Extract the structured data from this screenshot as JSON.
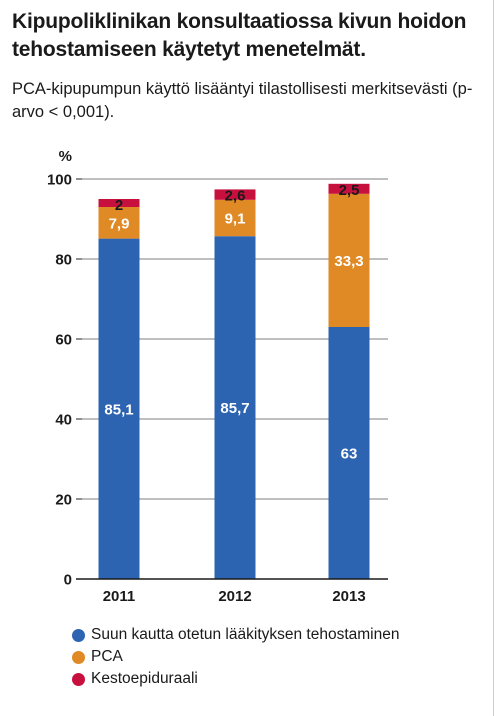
{
  "header": {
    "title": "Kipupoliklinikan konsultaatiossa kivun hoidon tehostamiseen käytetyt menetelmät.",
    "subtitle": "PCA-kipupumpun käyttö lisääntyi tilastollisesti merkitsevästi (p-arvo < 0,001)."
  },
  "chart_data": {
    "type": "bar",
    "stacked": true,
    "categories": [
      "2011",
      "2012",
      "2013"
    ],
    "ylabel": "%",
    "ylim": [
      0,
      100
    ],
    "yticks": [
      "0",
      "20",
      "40",
      "60",
      "80",
      "100"
    ],
    "grid": true,
    "legend_position": "bottom",
    "series": [
      {
        "name": "Suun kautta otetun lääkityksen tehostaminen",
        "color": "#2d64b2",
        "values": [
          85.1,
          85.7,
          63
        ],
        "labels": [
          "85,1",
          "85,7",
          "63"
        ]
      },
      {
        "name": "PCA",
        "color": "#e08a25",
        "values": [
          7.9,
          9.1,
          33.3
        ],
        "labels": [
          "7,9",
          "9,1",
          "33,3"
        ]
      },
      {
        "name": "Kestoepiduraali",
        "color": "#c8103f",
        "values": [
          2,
          2.6,
          2.5
        ],
        "labels": [
          "2",
          "2,6",
          "2,5"
        ]
      }
    ]
  }
}
